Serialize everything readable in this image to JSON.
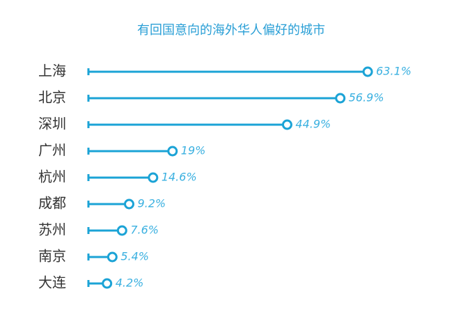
{
  "chart_data": {
    "type": "lollipop",
    "title": "有回国意向的海外华人偏好的城市",
    "categories": [
      "上海",
      "北京",
      "深圳",
      "广州",
      "杭州",
      "成都",
      "苏州",
      "南京",
      "大连"
    ],
    "values": [
      63.1,
      56.9,
      44.9,
      19,
      14.6,
      9.2,
      7.6,
      5.4,
      4.2
    ],
    "value_labels": [
      "63.1%",
      "56.9%",
      "44.9%",
      "19%",
      "14.6%",
      "9.2%",
      "7.6%",
      "5.4%",
      "4.2%"
    ],
    "color": "#1ba3d6",
    "xlim": [
      0,
      70
    ]
  }
}
